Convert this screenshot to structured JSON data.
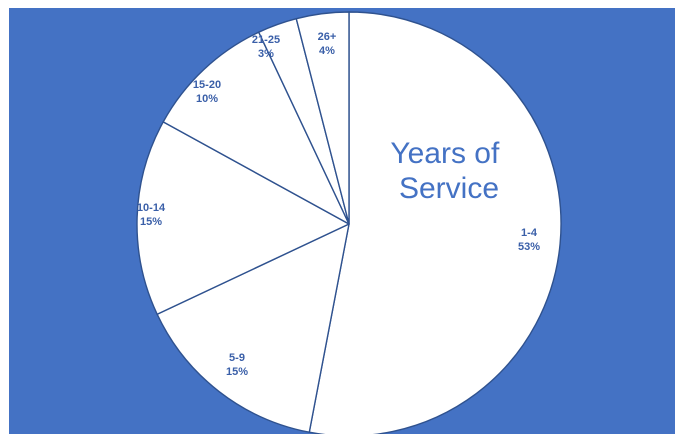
{
  "chart_data": {
    "type": "pie",
    "title": [
      "Years of",
      "Service"
    ],
    "start_angle_deg": 0,
    "direction": "clockwise",
    "slices": [
      {
        "label": "1-4",
        "percent_label": "53%",
        "value": 53
      },
      {
        "label": "5-9",
        "percent_label": "15%",
        "value": 15
      },
      {
        "label": "10-14",
        "percent_label": "15%",
        "value": 15
      },
      {
        "label": "15-20",
        "percent_label": "10%",
        "value": 10
      },
      {
        "label": "21-25",
        "percent_label": "3%",
        "value": 3
      },
      {
        "label": "26+",
        "percent_label": "4%",
        "value": 4
      }
    ],
    "colors": {
      "background": "#4472c4",
      "slice_fill": "#ffffff",
      "slice_stroke": "#2f528f",
      "label": "#3a5fa8",
      "title": "#4472c4"
    }
  }
}
